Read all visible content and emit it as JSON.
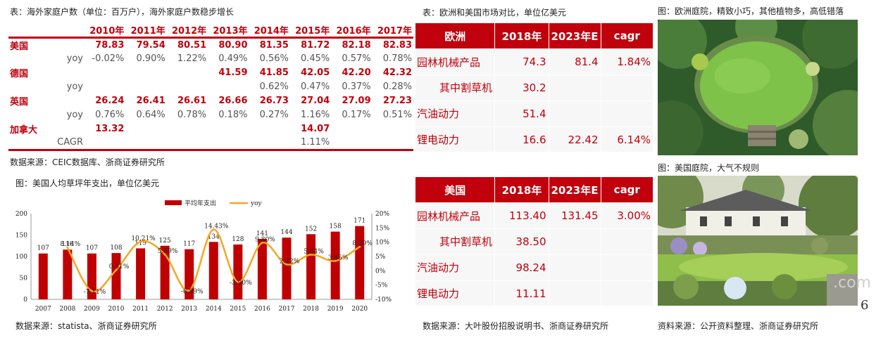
{
  "households": {
    "caption": "表：海外家庭户数（单位：百万户），海外家庭户数稳步增长",
    "years": [
      "2010年",
      "2011年",
      "2012年",
      "2013年",
      "2014年",
      "2015年",
      "2016年",
      "2017年"
    ],
    "rows": [
      {
        "country": "美国",
        "label": "",
        "type": "val",
        "cells": [
          "78.83",
          "79.54",
          "80.51",
          "80.90",
          "81.35",
          "81.72",
          "82.18",
          "82.83"
        ]
      },
      {
        "country": "",
        "label": "yoy",
        "type": "pct",
        "cells": [
          "-0.02%",
          "0.90%",
          "1.22%",
          "0.49%",
          "0.56%",
          "0.45%",
          "0.57%",
          "0.78%"
        ]
      },
      {
        "country": "德国",
        "label": "",
        "type": "val",
        "cells": [
          "",
          "",
          "",
          "41.59",
          "41.85",
          "42.05",
          "42.20",
          "42.32"
        ]
      },
      {
        "country": "",
        "label": "yoy",
        "type": "pct",
        "cells": [
          "",
          "",
          "",
          "",
          "0.62%",
          "0.47%",
          "0.37%",
          "0.28%"
        ]
      },
      {
        "country": "英国",
        "label": "",
        "type": "val",
        "cells": [
          "26.24",
          "26.41",
          "26.61",
          "26.66",
          "26.73",
          "27.04",
          "27.09",
          "27.23"
        ]
      },
      {
        "country": "",
        "label": "yoy",
        "type": "pct",
        "cells": [
          "0.76%",
          "0.64%",
          "0.78%",
          "0.18%",
          "0.27%",
          "1.16%",
          "0.17%",
          "0.51%"
        ]
      },
      {
        "country": "加拿大",
        "label": "",
        "type": "val",
        "cells": [
          "13.32",
          "",
          "",
          "",
          "",
          "14.07",
          "",
          ""
        ]
      },
      {
        "country": "",
        "label": "CAGR",
        "type": "pct",
        "cells": [
          "",
          "",
          "",
          "",
          "",
          "1.11%",
          "",
          ""
        ]
      }
    ],
    "source": "数据来源：CEIC数据库、浙商证券研究所"
  },
  "chart": {
    "caption": "图：美国人均草坪年支出，单位亿美元",
    "source": "数据来源：statista、浙商证券研究所",
    "legend_bar": "平均年支出",
    "legend_line": "yoy",
    "left_ticks": [
      "0",
      "50",
      "100",
      "150",
      "200"
    ],
    "right_ticks": [
      "-10%",
      "-5%",
      "0%",
      "5%",
      "10%",
      "15%",
      "20%"
    ]
  },
  "chart_data": {
    "type": "bar",
    "categories": [
      "2007",
      "2008",
      "2009",
      "2010",
      "2011",
      "2012",
      "2013",
      "2014",
      "2015",
      "2016",
      "2017",
      "2018",
      "2019",
      "2020"
    ],
    "series": [
      {
        "name": "平均年支出",
        "type": "bar",
        "axis": "left",
        "values": [
          107,
          116,
          107,
          108,
          119,
          125,
          117,
          134,
          128,
          141,
          144,
          152,
          158,
          171
        ]
      },
      {
        "name": "yoy",
        "type": "line",
        "axis": "right",
        "values": [
          null,
          8.14,
          -7.11,
          0.31,
          10.21,
          5.69,
          -6.89,
          14.43,
          -3.9,
          9.8,
          2.22,
          5.64,
          3.45,
          8.39
        ]
      }
    ],
    "bar_labels": [
      "107",
      "116",
      "107",
      "108",
      "119",
      "125",
      "117",
      "134",
      "128",
      "141",
      "144",
      "152",
      "158",
      "171"
    ],
    "line_labels": [
      "",
      "8.14%",
      "-7.11%",
      "0.31%",
      "10.21%",
      "5.69%",
      "-6.89%",
      "14.43%",
      "-3.90%",
      "9.80%",
      "2.22%",
      "5.64%",
      "3.45%",
      "8.39%"
    ],
    "ylim_left": [
      0,
      200
    ],
    "ylim_right": [
      -10,
      20
    ],
    "colors": {
      "bar": "#c00000",
      "line": "#f5a623"
    },
    "legend_position": "top"
  },
  "market": {
    "caption": "表：欧洲和美国市场对比，单位亿美元",
    "source": "数据来源：大叶股份招股说明书、浙商证券研究所",
    "europe": {
      "header": [
        "欧洲",
        "2018年",
        "2023年E",
        "cagr"
      ],
      "rows": [
        {
          "name": "园林机械产品",
          "indent": false,
          "cells": [
            "74.3",
            "81.4",
            "1.84%"
          ]
        },
        {
          "name": "其中割草机",
          "indent": true,
          "cells": [
            "30.2",
            "",
            ""
          ]
        },
        {
          "name": "汽油动力",
          "indent": false,
          "cells": [
            "51.4",
            "",
            ""
          ]
        },
        {
          "name": "锂电动力",
          "indent": false,
          "cells": [
            "16.6",
            "22.42",
            "6.14%"
          ]
        }
      ]
    },
    "usa": {
      "header": [
        "美国",
        "2018年",
        "2023年E",
        "cagr"
      ],
      "rows": [
        {
          "name": "园林机械产品",
          "indent": false,
          "cells": [
            "113.40",
            "131.45",
            "3.00%"
          ]
        },
        {
          "name": "其中割草机",
          "indent": true,
          "cells": [
            "38.50",
            "",
            ""
          ]
        },
        {
          "name": "汽油动力",
          "indent": false,
          "cells": [
            "98.24",
            "",
            ""
          ]
        },
        {
          "name": "锂电动力",
          "indent": false,
          "cells": [
            "11.11",
            "",
            ""
          ]
        }
      ]
    }
  },
  "photos": {
    "europe_caption": "图：欧洲庭院，精致小巧，其他植物多，高低错落",
    "usa_caption": "图：美国庭院，大气不规则",
    "source": "资料来源：公开资料整理、浙商证券研究所",
    "watermark": ".com"
  },
  "page_number": "6",
  "colors": {
    "accent": "#c0000c",
    "cell_bg": "#f7f7f7"
  }
}
